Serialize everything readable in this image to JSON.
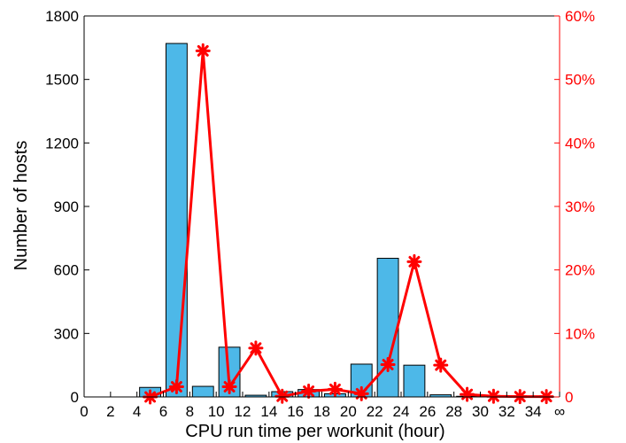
{
  "chart_data": {
    "type": "bar",
    "title": "",
    "xlabel": "CPU run time per workunit (hour)",
    "ylabel": "Number of hosts",
    "xlim": [
      0,
      36
    ],
    "ylim": [
      0,
      1800
    ],
    "y2lim": [
      0,
      60
    ],
    "x_ticks": [
      "0",
      "2",
      "4",
      "6",
      "8",
      "10",
      "12",
      "14",
      "16",
      "18",
      "20",
      "22",
      "24",
      "26",
      "28",
      "30",
      "32",
      "34",
      "∞"
    ],
    "y_ticks": [
      "0",
      "300",
      "600",
      "900",
      "1200",
      "1500",
      "1800"
    ],
    "y2_ticks": [
      "0",
      "10%",
      "20%",
      "30%",
      "40%",
      "50%",
      "60%"
    ],
    "bars": {
      "x": [
        3,
        5,
        7,
        9,
        11,
        13,
        15,
        17,
        19,
        21,
        23,
        25,
        27,
        29,
        31,
        33,
        35
      ],
      "values": [
        0,
        45,
        1670,
        50,
        235,
        8,
        25,
        35,
        15,
        155,
        655,
        150,
        10,
        3,
        2,
        2,
        0
      ],
      "bar_width_hours": 1.6,
      "color": "#4db8e8"
    },
    "series": [
      {
        "axis": "right",
        "x": [
          5,
          7,
          9,
          11,
          13,
          15,
          17,
          19,
          21,
          23,
          25,
          27,
          29,
          31,
          33,
          35
        ],
        "values": [
          0,
          1.6,
          54.5,
          1.6,
          7.7,
          0.1,
          0.9,
          1.2,
          0.5,
          5.1,
          21.3,
          5.0,
          0.4,
          0.1,
          0.05,
          0.05
        ],
        "color": "#ff0000",
        "marker": "asterisk"
      }
    ],
    "grid": false,
    "colors": {
      "bar": "#4db8e8",
      "line": "#ff0000",
      "axis_left": "#000000",
      "axis_right": "#ff0000"
    }
  }
}
